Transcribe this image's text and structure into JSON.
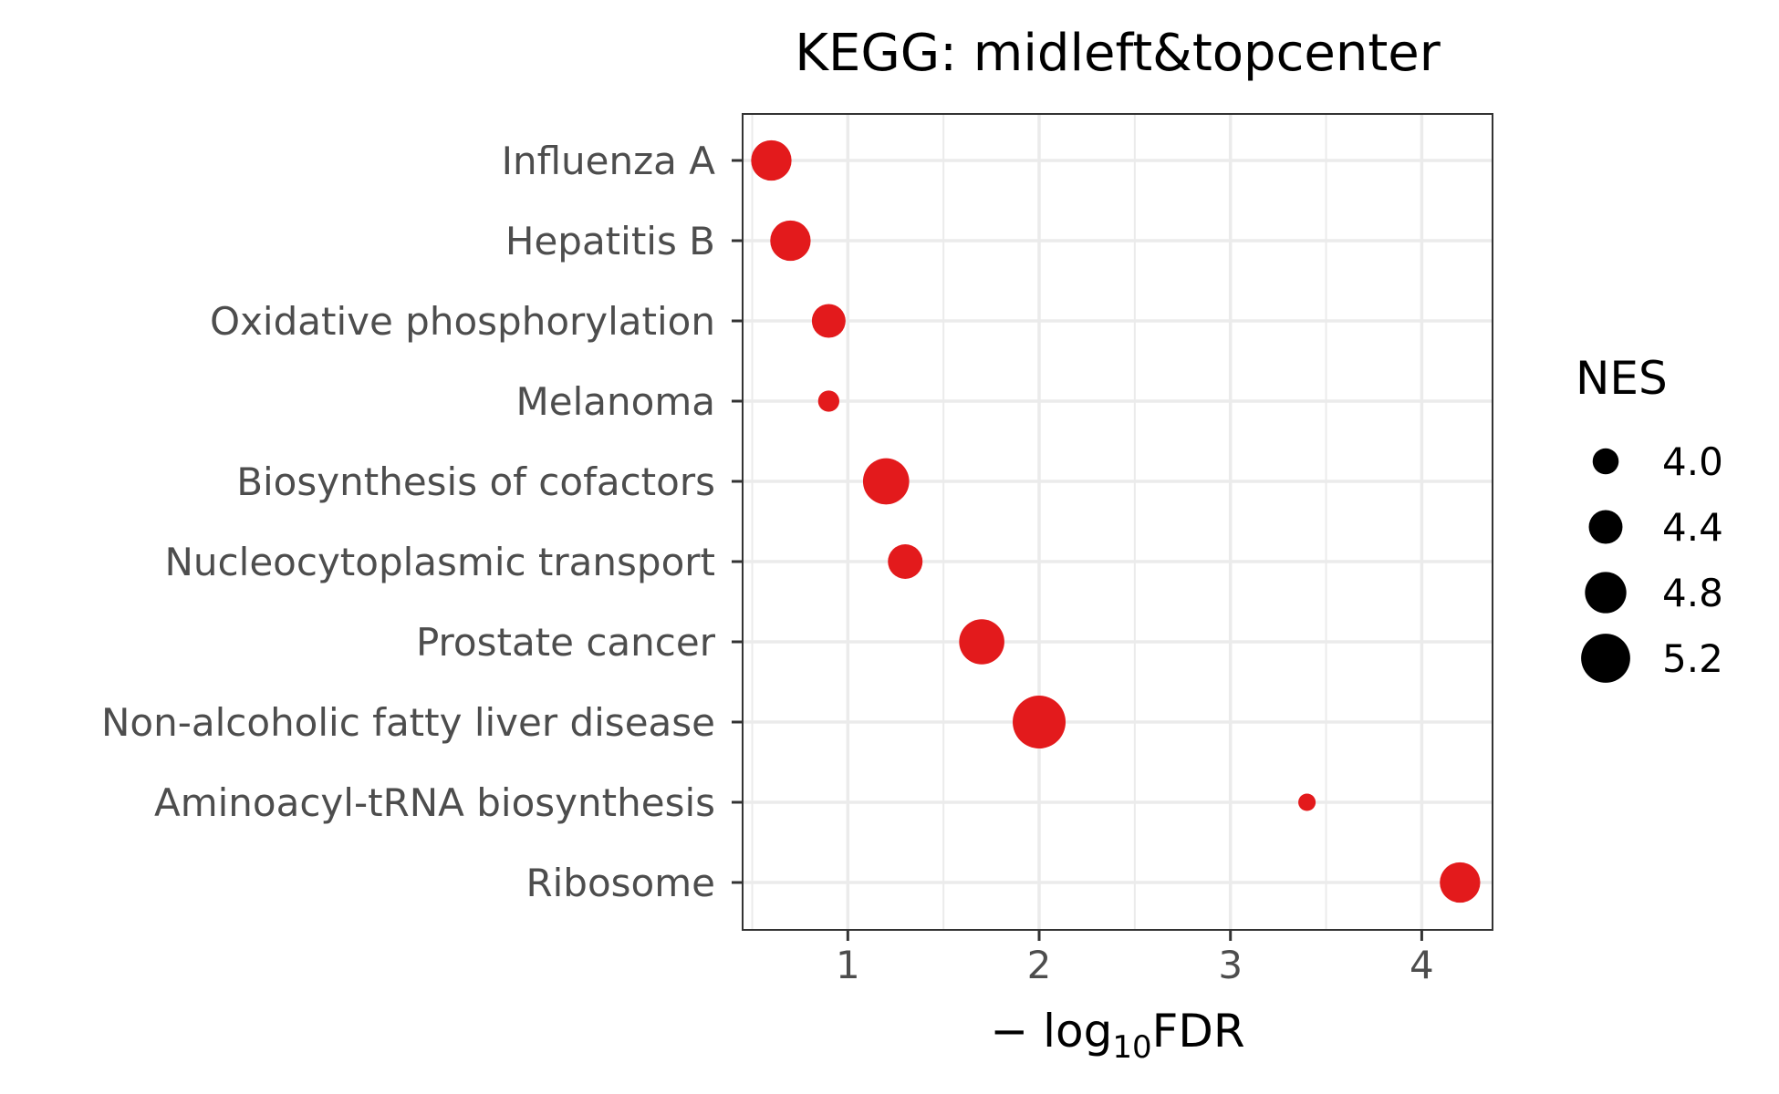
{
  "chart_data": {
    "type": "scatter",
    "title": "KEGG: midleft&topcenter",
    "xlabel": {
      "prefix": "− log",
      "subscript": "10",
      "suffix": "FDR"
    },
    "ylabel": "",
    "xlim": [
      0.45,
      4.37
    ],
    "x_ticks": [
      1,
      2,
      3,
      4
    ],
    "categories": [
      "Influenza A",
      "Hepatitis B",
      "Oxidative phosphorylation",
      "Melanoma",
      "Biosynthesis of cofactors",
      "Nucleocytoplasmic transport",
      "Prostate cancer",
      "Non-alcoholic fatty liver disease",
      "Aminoacyl-tRNA biosynthesis",
      "Ribosome"
    ],
    "series": [
      {
        "points": [
          {
            "label": "Influenza A",
            "x": 0.6,
            "nes": 4.75
          },
          {
            "label": "Hepatitis B",
            "x": 0.7,
            "nes": 4.75
          },
          {
            "label": "Oxidative phosphorylation",
            "x": 0.9,
            "nes": 4.4
          },
          {
            "label": "Melanoma",
            "x": 0.9,
            "nes": 3.75
          },
          {
            "label": "Biosynthesis of cofactors",
            "x": 1.2,
            "nes": 5.05
          },
          {
            "label": "Nucleocytoplasmic transport",
            "x": 1.3,
            "nes": 4.45
          },
          {
            "label": "Prostate cancer",
            "x": 1.7,
            "nes": 5.0
          },
          {
            "label": "Non-alcoholic fatty liver disease",
            "x": 2.0,
            "nes": 5.4
          },
          {
            "label": "Aminoacyl-tRNA biosynthesis",
            "x": 3.4,
            "nes": 3.55
          },
          {
            "label": "Ribosome",
            "x": 4.2,
            "nes": 4.75
          }
        ]
      }
    ],
    "point_color": "#e31a1c",
    "size_range": [
      3.5,
      5.4
    ],
    "legend": {
      "title": "NES",
      "placement": "right",
      "entries": [
        {
          "label": "4.0",
          "nes": 4.0
        },
        {
          "label": "4.4",
          "nes": 4.4
        },
        {
          "label": "4.8",
          "nes": 4.8
        },
        {
          "label": "5.2",
          "nes": 5.2
        }
      ]
    },
    "grid": true
  }
}
